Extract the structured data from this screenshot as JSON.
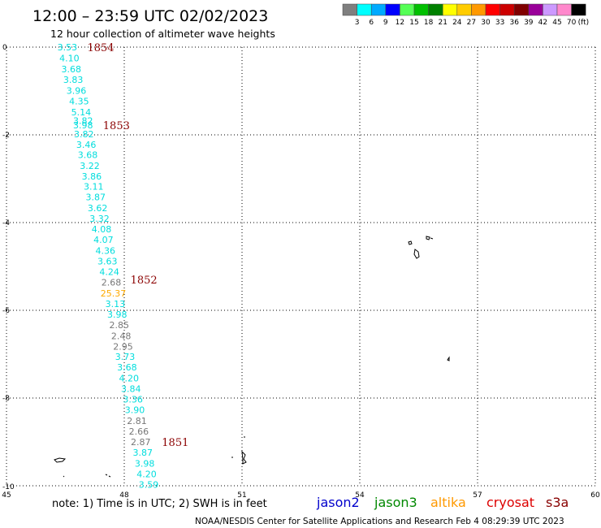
{
  "title": "12:00 – 23:59 UTC 02/02/2023",
  "subtitle": "12 hour collection of altimeter wave heights",
  "colorbar": {
    "ticks": [
      "3",
      "6",
      "9",
      "12",
      "15",
      "18",
      "21",
      "24",
      "27",
      "30",
      "33",
      "36",
      "39",
      "42",
      "45",
      "70"
    ],
    "unit": "(ft)",
    "colors": [
      "#7f7f7f",
      "#00ffff",
      "#00aaff",
      "#0000ff",
      "#55ff55",
      "#00c000",
      "#008000",
      "#ffff00",
      "#ffcc00",
      "#ff9900",
      "#ff0000",
      "#cc0000",
      "#800000",
      "#990099",
      "#cc99ff",
      "#ff88cc",
      "#000000"
    ]
  },
  "note": "note:  1) Time is in UTC;  2) SWH is in feet",
  "satellites": [
    {
      "name": "jason2",
      "color": "#0000cc"
    },
    {
      "name": "jason3",
      "color": "#008800"
    },
    {
      "name": "altika",
      "color": "#ff9900"
    },
    {
      "name": "cryosat",
      "color": "#dd0000"
    },
    {
      "name": "s3a",
      "color": "#880000"
    }
  ],
  "credit": "NOAA/NESDIS Center for Satellite Applications and Research    Feb  4 08:29:39 UTC 2023",
  "chart_data": {
    "type": "scatter",
    "xlim": [
      45,
      60
    ],
    "ylim": [
      -10,
      0
    ],
    "x_ticks": [
      "45",
      "48",
      "51",
      "54",
      "57",
      "60"
    ],
    "y_ticks": [
      "0",
      "-2",
      "-4",
      "-6",
      "-8",
      "-10"
    ],
    "grid": true,
    "points": [
      {
        "x": 46.55,
        "y": 0.0,
        "label": "3.53",
        "color": "#00dddd"
      },
      {
        "x": 46.6,
        "y": -0.25,
        "label": "4.10",
        "color": "#00dddd"
      },
      {
        "x": 46.65,
        "y": -0.5,
        "label": "3.68",
        "color": "#00dddd"
      },
      {
        "x": 46.7,
        "y": -0.74,
        "label": "3.83",
        "color": "#00dddd"
      },
      {
        "x": 46.78,
        "y": -0.99,
        "label": "3.96",
        "color": "#00dddd"
      },
      {
        "x": 46.85,
        "y": -1.23,
        "label": "4.35",
        "color": "#00dddd"
      },
      {
        "x": 46.9,
        "y": -1.48,
        "label": "5.14",
        "color": "#00dddd"
      },
      {
        "x": 46.95,
        "y": -1.68,
        "label": "3.82",
        "color": "#00dddd"
      },
      {
        "x": 46.95,
        "y": -1.78,
        "label": "3.98",
        "color": "#00dddd"
      },
      {
        "x": 46.97,
        "y": -1.98,
        "label": "3.82",
        "color": "#00dddd"
      },
      {
        "x": 47.03,
        "y": -2.22,
        "label": "3.46",
        "color": "#00dddd"
      },
      {
        "x": 47.07,
        "y": -2.45,
        "label": "3.68",
        "color": "#00dddd"
      },
      {
        "x": 47.12,
        "y": -2.7,
        "label": "3.22",
        "color": "#00dddd"
      },
      {
        "x": 47.17,
        "y": -2.94,
        "label": "3.86",
        "color": "#00dddd"
      },
      {
        "x": 47.22,
        "y": -3.18,
        "label": "3.11",
        "color": "#00dddd"
      },
      {
        "x": 47.27,
        "y": -3.42,
        "label": "3.87",
        "color": "#00dddd"
      },
      {
        "x": 47.32,
        "y": -3.67,
        "label": "3.62",
        "color": "#00dddd"
      },
      {
        "x": 47.37,
        "y": -3.91,
        "label": "3.32",
        "color": "#00dddd"
      },
      {
        "x": 47.42,
        "y": -4.15,
        "label": "4.08",
        "color": "#00dddd"
      },
      {
        "x": 47.47,
        "y": -4.39,
        "label": "4.07",
        "color": "#00dddd"
      },
      {
        "x": 47.52,
        "y": -4.64,
        "label": "4.36",
        "color": "#00dddd"
      },
      {
        "x": 47.57,
        "y": -4.88,
        "label": "3.63",
        "color": "#00dddd"
      },
      {
        "x": 47.62,
        "y": -5.12,
        "label": "4.24",
        "color": "#00dddd"
      },
      {
        "x": 47.67,
        "y": -5.36,
        "label": "2.68",
        "color": "#777777"
      },
      {
        "x": 47.72,
        "y": -5.61,
        "label": "25.37",
        "color": "#ffaa00"
      },
      {
        "x": 47.77,
        "y": -5.85,
        "label": "3.13",
        "color": "#00dddd"
      },
      {
        "x": 47.82,
        "y": -6.09,
        "label": "3.98",
        "color": "#00dddd"
      },
      {
        "x": 47.87,
        "y": -6.33,
        "label": "2.85",
        "color": "#777777"
      },
      {
        "x": 47.92,
        "y": -6.58,
        "label": "2.48",
        "color": "#777777"
      },
      {
        "x": 47.97,
        "y": -6.82,
        "label": "2.95",
        "color": "#777777"
      },
      {
        "x": 48.02,
        "y": -7.06,
        "label": "3.73",
        "color": "#00dddd"
      },
      {
        "x": 48.07,
        "y": -7.3,
        "label": "3.68",
        "color": "#00dddd"
      },
      {
        "x": 48.12,
        "y": -7.55,
        "label": "4.20",
        "color": "#00dddd"
      },
      {
        "x": 48.17,
        "y": -7.79,
        "label": "3.84",
        "color": "#00dddd"
      },
      {
        "x": 48.22,
        "y": -8.03,
        "label": "3.36",
        "color": "#00dddd"
      },
      {
        "x": 48.27,
        "y": -8.27,
        "label": "3.90",
        "color": "#00dddd"
      },
      {
        "x": 48.32,
        "y": -8.52,
        "label": "2.81",
        "color": "#777777"
      },
      {
        "x": 48.37,
        "y": -8.76,
        "label": "2.66",
        "color": "#777777"
      },
      {
        "x": 48.42,
        "y": -9.0,
        "label": "2.87",
        "color": "#777777"
      },
      {
        "x": 48.47,
        "y": -9.24,
        "label": "3.87",
        "color": "#00dddd"
      },
      {
        "x": 48.52,
        "y": -9.49,
        "label": "3.98",
        "color": "#00dddd"
      },
      {
        "x": 48.57,
        "y": -9.73,
        "label": "4.20",
        "color": "#00dddd"
      },
      {
        "x": 48.62,
        "y": -9.97,
        "label": "3.59",
        "color": "#00dddd"
      }
    ],
    "pass_labels": [
      {
        "x": 47.4,
        "y": 0.0,
        "label": "1854"
      },
      {
        "x": 47.8,
        "y": -1.78,
        "label": "1853"
      },
      {
        "x": 48.5,
        "y": -5.3,
        "label": "1852"
      },
      {
        "x": 49.3,
        "y": -9.0,
        "label": "1851"
      }
    ]
  }
}
